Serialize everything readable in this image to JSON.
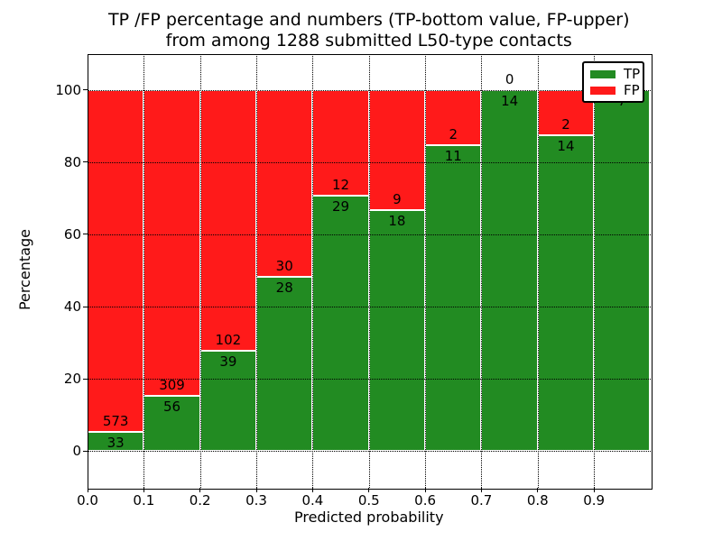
{
  "title": {
    "line1": "TP /FP percentage and numbers (TP-bottom value, FP-upper)",
    "line2": "from among 1288 submitted L50-type contacts"
  },
  "y_axis": {
    "label": "Percentage",
    "ticks": [
      "0",
      "20",
      "40",
      "60",
      "80",
      "100"
    ],
    "tick_values": [
      0,
      20,
      40,
      60,
      80,
      100
    ]
  },
  "x_axis": {
    "label": "Predicted probability",
    "ticks": [
      "0.0",
      "0.1",
      "0.2",
      "0.3",
      "0.4",
      "0.5",
      "0.6",
      "0.7",
      "0.8",
      "0.9"
    ],
    "tick_values": [
      0.0,
      0.1,
      0.2,
      0.3,
      0.4,
      0.5,
      0.6,
      0.7,
      0.8,
      0.9
    ]
  },
  "legend": {
    "items": [
      {
        "label": "TP",
        "color": "#228b22"
      },
      {
        "label": "FP",
        "color": "#ff1a1a"
      }
    ]
  },
  "chart_data": {
    "type": "bar",
    "subtype": "stacked-100-percent",
    "title": "TP /FP percentage and numbers (TP-bottom value, FP-upper) from among 1288 submitted L50-type contacts",
    "xlabel": "Predicted probability",
    "ylabel": "Percentage",
    "total_contacts": 1288,
    "bin_starts": [
      0.0,
      0.1,
      0.2,
      0.3,
      0.4,
      0.5,
      0.6,
      0.7,
      0.8,
      0.9
    ],
    "bin_width": 0.1,
    "series": [
      {
        "name": "TP",
        "color": "#228b22",
        "counts": [
          33,
          56,
          39,
          28,
          29,
          18,
          11,
          14,
          14,
          7
        ],
        "percent": [
          5.4,
          15.3,
          27.7,
          48.3,
          70.7,
          66.7,
          84.6,
          100.0,
          87.5,
          100.0
        ]
      },
      {
        "name": "FP",
        "color": "#ff1a1a",
        "counts": [
          573,
          309,
          102,
          30,
          12,
          9,
          2,
          0,
          2,
          0
        ],
        "percent": [
          94.6,
          84.7,
          72.3,
          51.7,
          29.3,
          33.3,
          15.4,
          0.0,
          12.5,
          0.0
        ]
      }
    ],
    "bar_label_rule": "TP count just below segment boundary, FP count just above segment boundary",
    "ylim": [
      -10,
      110
    ],
    "xlim": [
      0.0,
      1.0
    ],
    "grid": true,
    "grid_style": "dotted",
    "legend_position": "upper-right"
  }
}
